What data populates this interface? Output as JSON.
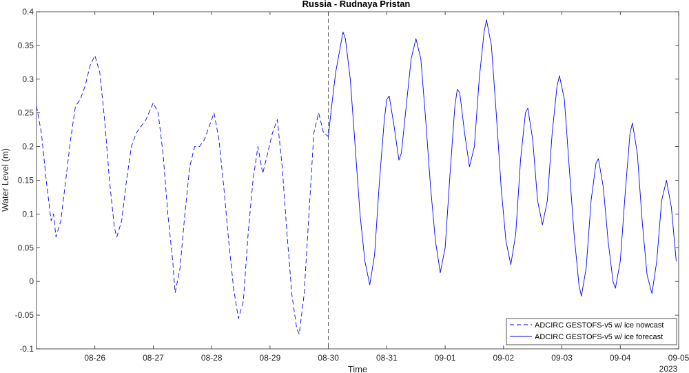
{
  "chart_data": {
    "type": "line",
    "title": "Russia - Rudnaya Pristan",
    "xlabel": "Time",
    "ylabel": "Water Level (m)",
    "year_label": "2023",
    "xlim": [
      "2023-08-25T00:00",
      "2023-09-05T00:00"
    ],
    "ylim": [
      -0.1,
      0.4
    ],
    "xticks": [
      {
        "date": "2023-08-26",
        "label": "08-26"
      },
      {
        "date": "2023-08-27",
        "label": "08-27"
      },
      {
        "date": "2023-08-28",
        "label": "08-28"
      },
      {
        "date": "2023-08-29",
        "label": "08-29"
      },
      {
        "date": "2023-08-30",
        "label": "08-30"
      },
      {
        "date": "2023-08-31",
        "label": "08-31"
      },
      {
        "date": "2023-09-01",
        "label": "09-01"
      },
      {
        "date": "2023-09-02",
        "label": "09-02"
      },
      {
        "date": "2023-09-03",
        "label": "09-03"
      },
      {
        "date": "2023-09-04",
        "label": "09-04"
      },
      {
        "date": "2023-09-05",
        "label": "09-05"
      }
    ],
    "yticks": [
      {
        "value": -0.1,
        "label": "-0.1"
      },
      {
        "value": -0.05,
        "label": "-0.05"
      },
      {
        "value": 0,
        "label": "0"
      },
      {
        "value": 0.05,
        "label": "0.05"
      },
      {
        "value": 0.1,
        "label": "0.1"
      },
      {
        "value": 0.15,
        "label": "0.15"
      },
      {
        "value": 0.2,
        "label": "0.2"
      },
      {
        "value": 0.25,
        "label": "0.25"
      },
      {
        "value": 0.3,
        "label": "0.3"
      },
      {
        "value": 0.35,
        "label": "0.35"
      },
      {
        "value": 0.4,
        "label": "0.4"
      }
    ],
    "nowcast_end": "2023-08-30T00:00",
    "legend_position": "bottom-right",
    "grid": false,
    "color": "#0000ff",
    "series": [
      {
        "name": "ADCIRC GESTOFS-v5 w/ ice nowcast",
        "style": "dashed",
        "points": [
          [
            "2023-08-25T00:00",
            0.26
          ],
          [
            "2023-08-25T02:00",
            0.22
          ],
          [
            "2023-08-25T04:00",
            0.15
          ],
          [
            "2023-08-25T06:00",
            0.09
          ],
          [
            "2023-08-25T07:00",
            0.1
          ],
          [
            "2023-08-25T08:00",
            0.066
          ],
          [
            "2023-08-25T10:00",
            0.09
          ],
          [
            "2023-08-25T12:00",
            0.15
          ],
          [
            "2023-08-25T14:00",
            0.21
          ],
          [
            "2023-08-25T16:00",
            0.26
          ],
          [
            "2023-08-25T18:00",
            0.27
          ],
          [
            "2023-08-25T20:00",
            0.29
          ],
          [
            "2023-08-25T22:00",
            0.32
          ],
          [
            "2023-08-26T00:00",
            0.335
          ],
          [
            "2023-08-26T02:00",
            0.31
          ],
          [
            "2023-08-26T04:00",
            0.24
          ],
          [
            "2023-08-26T06:00",
            0.15
          ],
          [
            "2023-08-26T08:00",
            0.08
          ],
          [
            "2023-08-26T09:00",
            0.066
          ],
          [
            "2023-08-26T11:00",
            0.09
          ],
          [
            "2023-08-26T13:00",
            0.15
          ],
          [
            "2023-08-26T15:00",
            0.2
          ],
          [
            "2023-08-26T17:00",
            0.22
          ],
          [
            "2023-08-26T19:00",
            0.23
          ],
          [
            "2023-08-26T21:00",
            0.24
          ],
          [
            "2023-08-27T00:00",
            0.265
          ],
          [
            "2023-08-27T02:00",
            0.25
          ],
          [
            "2023-08-27T04:00",
            0.19
          ],
          [
            "2023-08-27T06:00",
            0.1
          ],
          [
            "2023-08-27T08:00",
            0.03
          ],
          [
            "2023-08-27T09:00",
            -0.017
          ],
          [
            "2023-08-27T11:00",
            0.02
          ],
          [
            "2023-08-27T13:00",
            0.1
          ],
          [
            "2023-08-27T15:00",
            0.17
          ],
          [
            "2023-08-27T17:00",
            0.2
          ],
          [
            "2023-08-27T19:00",
            0.2
          ],
          [
            "2023-08-27T21:00",
            0.21
          ],
          [
            "2023-08-28T00:00",
            0.24
          ],
          [
            "2023-08-28T01:00",
            0.25
          ],
          [
            "2023-08-28T03:00",
            0.21
          ],
          [
            "2023-08-28T05:00",
            0.14
          ],
          [
            "2023-08-28T07:00",
            0.06
          ],
          [
            "2023-08-28T09:00",
            -0.01
          ],
          [
            "2023-08-28T11:00",
            -0.055
          ],
          [
            "2023-08-28T13:00",
            -0.03
          ],
          [
            "2023-08-28T15:00",
            0.07
          ],
          [
            "2023-08-28T17:00",
            0.15
          ],
          [
            "2023-08-28T19:00",
            0.2
          ],
          [
            "2023-08-28T21:00",
            0.16
          ],
          [
            "2023-08-28T23:00",
            0.19
          ],
          [
            "2023-08-29T01:00",
            0.22
          ],
          [
            "2023-08-29T03:00",
            0.24
          ],
          [
            "2023-08-29T05:00",
            0.17
          ],
          [
            "2023-08-29T07:00",
            0.07
          ],
          [
            "2023-08-29T09:00",
            -0.02
          ],
          [
            "2023-08-29T11:00",
            -0.07
          ],
          [
            "2023-08-29T12:00",
            -0.078
          ],
          [
            "2023-08-29T14:00",
            -0.02
          ],
          [
            "2023-08-29T16:00",
            0.1
          ],
          [
            "2023-08-29T18:00",
            0.22
          ],
          [
            "2023-08-29T20:00",
            0.25
          ],
          [
            "2023-08-29T22:00",
            0.22
          ],
          [
            "2023-08-30T00:00",
            0.215
          ]
        ]
      },
      {
        "name": "ADCIRC GESTOFS-v5 w/ ice forecast",
        "style": "solid",
        "points": [
          [
            "2023-08-30T00:00",
            0.215
          ],
          [
            "2023-08-30T01:00",
            0.25
          ],
          [
            "2023-08-30T03:00",
            0.31
          ],
          [
            "2023-08-30T05:00",
            0.35
          ],
          [
            "2023-08-30T06:00",
            0.37
          ],
          [
            "2023-08-30T07:00",
            0.36
          ],
          [
            "2023-08-30T09:00",
            0.3
          ],
          [
            "2023-08-30T11:00",
            0.2
          ],
          [
            "2023-08-30T13:00",
            0.1
          ],
          [
            "2023-08-30T15:00",
            0.03
          ],
          [
            "2023-08-30T17:00",
            -0.005
          ],
          [
            "2023-08-30T19:00",
            0.04
          ],
          [
            "2023-08-30T21:00",
            0.15
          ],
          [
            "2023-08-30T23:00",
            0.24
          ],
          [
            "2023-08-31T00:00",
            0.27
          ],
          [
            "2023-08-31T01:00",
            0.275
          ],
          [
            "2023-08-31T03:00",
            0.23
          ],
          [
            "2023-08-31T05:00",
            0.18
          ],
          [
            "2023-08-31T06:00",
            0.19
          ],
          [
            "2023-08-31T08:00",
            0.26
          ],
          [
            "2023-08-31T10:00",
            0.33
          ],
          [
            "2023-08-31T12:00",
            0.36
          ],
          [
            "2023-08-31T14:00",
            0.33
          ],
          [
            "2023-08-31T16:00",
            0.24
          ],
          [
            "2023-08-31T18:00",
            0.14
          ],
          [
            "2023-08-31T20:00",
            0.06
          ],
          [
            "2023-08-31T22:00",
            0.013
          ],
          [
            "2023-09-01T00:00",
            0.05
          ],
          [
            "2023-09-01T02:00",
            0.16
          ],
          [
            "2023-09-01T04:00",
            0.26
          ],
          [
            "2023-09-01T05:00",
            0.285
          ],
          [
            "2023-09-01T06:00",
            0.28
          ],
          [
            "2023-09-01T08:00",
            0.22
          ],
          [
            "2023-09-01T10:00",
            0.17
          ],
          [
            "2023-09-01T12:00",
            0.2
          ],
          [
            "2023-09-01T14:00",
            0.3
          ],
          [
            "2023-09-01T16:00",
            0.37
          ],
          [
            "2023-09-01T17:00",
            0.388
          ],
          [
            "2023-09-01T19:00",
            0.35
          ],
          [
            "2023-09-01T21:00",
            0.25
          ],
          [
            "2023-09-01T23:00",
            0.14
          ],
          [
            "2023-09-02T01:00",
            0.06
          ],
          [
            "2023-09-02T03:00",
            0.025
          ],
          [
            "2023-09-02T05:00",
            0.07
          ],
          [
            "2023-09-02T07:00",
            0.18
          ],
          [
            "2023-09-02T09:00",
            0.25
          ],
          [
            "2023-09-02T10:00",
            0.257
          ],
          [
            "2023-09-02T12:00",
            0.21
          ],
          [
            "2023-09-02T14:00",
            0.12
          ],
          [
            "2023-09-02T16:00",
            0.084
          ],
          [
            "2023-09-02T18:00",
            0.12
          ],
          [
            "2023-09-02T20:00",
            0.22
          ],
          [
            "2023-09-02T22:00",
            0.29
          ],
          [
            "2023-09-02T23:00",
            0.305
          ],
          [
            "2023-09-03T01:00",
            0.27
          ],
          [
            "2023-09-03T03:00",
            0.17
          ],
          [
            "2023-09-03T05:00",
            0.07
          ],
          [
            "2023-09-03T07:00",
            -0.005
          ],
          [
            "2023-09-03T08:00",
            -0.022
          ],
          [
            "2023-09-03T10:00",
            0.02
          ],
          [
            "2023-09-03T12:00",
            0.12
          ],
          [
            "2023-09-03T14:00",
            0.175
          ],
          [
            "2023-09-03T15:00",
            0.182
          ],
          [
            "2023-09-03T17:00",
            0.14
          ],
          [
            "2023-09-03T19:00",
            0.06
          ],
          [
            "2023-09-03T21:00",
            0.0
          ],
          [
            "2023-09-03T22:00",
            -0.01
          ],
          [
            "2023-09-04T00:00",
            0.03
          ],
          [
            "2023-09-04T02:00",
            0.13
          ],
          [
            "2023-09-04T04:00",
            0.22
          ],
          [
            "2023-09-04T05:00",
            0.235
          ],
          [
            "2023-09-04T07:00",
            0.19
          ],
          [
            "2023-09-04T09:00",
            0.09
          ],
          [
            "2023-09-04T11:00",
            0.01
          ],
          [
            "2023-09-04T13:00",
            -0.018
          ],
          [
            "2023-09-04T15:00",
            0.03
          ],
          [
            "2023-09-04T17:00",
            0.12
          ],
          [
            "2023-09-04T19:00",
            0.15
          ],
          [
            "2023-09-04T21:00",
            0.11
          ],
          [
            "2023-09-04T23:00",
            0.03
          ]
        ]
      }
    ]
  }
}
